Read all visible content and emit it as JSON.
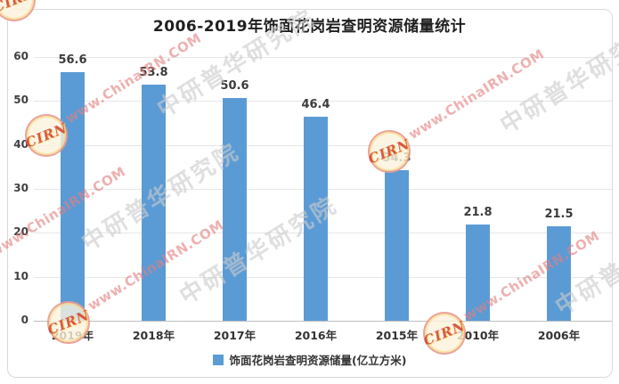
{
  "chart_data": {
    "type": "bar",
    "title": "2006-2019年饰面花岗岩查明资源储量统计",
    "categories": [
      "2019年",
      "2018年",
      "2017年",
      "2016年",
      "2015年",
      "2010年",
      "2006年"
    ],
    "values": [
      56.6,
      53.8,
      50.6,
      46.4,
      34.3,
      21.8,
      21.5
    ],
    "legend": "饰面花岗岩查明资源储量(亿立方米)",
    "legend_position": "bottom",
    "xlabel": "",
    "ylabel": "",
    "ylim": [
      0,
      60
    ],
    "yticks": [
      0,
      10,
      20,
      30,
      40,
      50,
      60
    ],
    "grid": true,
    "bar_color": "#5B9BD5",
    "value_label_decimals": 1
  },
  "watermark": {
    "logo_text": "CIRN",
    "url_text": "www.ChinaIRN.COM",
    "cn_text": "中研普华研究院"
  }
}
